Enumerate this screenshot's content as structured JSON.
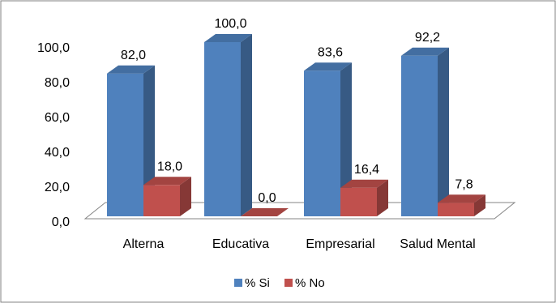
{
  "chart_data": {
    "type": "bar3d",
    "categories": [
      "Alterna",
      "Educativa",
      "Empresarial",
      "Salud Mental"
    ],
    "series": [
      {
        "name": "% Si",
        "color": "#4f81bd",
        "values": [
          82.0,
          100.0,
          83.6,
          92.2
        ],
        "value_labels": [
          "82,0",
          "100,0",
          "83,6",
          "92,2"
        ]
      },
      {
        "name": "% No",
        "color": "#c0504d",
        "values": [
          18.0,
          0.0,
          16.4,
          7.8
        ],
        "value_labels": [
          "18,0",
          "0,0",
          "16,4",
          "7,8"
        ]
      }
    ],
    "ylim": [
      0,
      100
    ],
    "yticks": [
      {
        "value": 0,
        "label": "0,0"
      },
      {
        "value": 20,
        "label": "20,0"
      },
      {
        "value": 40,
        "label": "40,0"
      },
      {
        "value": 60,
        "label": "60,0"
      },
      {
        "value": 80,
        "label": "80,0"
      },
      {
        "value": 100,
        "label": "100,0"
      }
    ],
    "legend": "bottom"
  }
}
